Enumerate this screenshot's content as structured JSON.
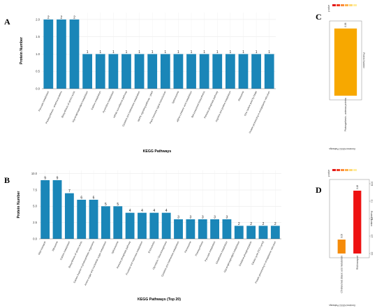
{
  "panels": {
    "a": "A",
    "b": "B",
    "c": "C",
    "d": "D"
  },
  "chart_data": [
    {
      "id": "A",
      "type": "bar",
      "xlabel": "KEGG Pathways",
      "ylabel": "Protein Number",
      "ylim": [
        0,
        2.2
      ],
      "yticks": [
        0.0,
        0.5,
        1.0,
        1.5,
        2.0
      ],
      "grid": true,
      "color": "#1a86b8",
      "categories": [
        "Pyruvate metabolism",
        "Photosynthesis - antenna proteins",
        "Biosynthesis of amino acids",
        "Glycerophospholipid metabolism",
        "Carbon metabolism",
        "Pyrimidine metabolism",
        "mRNA surveillance pathway",
        "Cysteine and methionine metabolism",
        "MAPK signaling pathway - plant",
        "Plant hormone signal transduction",
        "Spliceosome",
        "alpha-Linolenic acid metabolism",
        "Benzoxazinoid biosynthesis",
        "Pentose phosphate pathway",
        "Arginine and proline metabolism",
        "Ribosome",
        "One carbon pool by folate",
        "Protein processing in endoplasmic reticulum"
      ],
      "values": [
        2,
        2,
        2,
        1,
        1,
        1,
        1,
        1,
        1,
        1,
        1,
        1,
        1,
        1,
        1,
        1,
        1,
        1
      ]
    },
    {
      "id": "B",
      "type": "bar",
      "xlabel": "KEGG Pathways (Top 20)",
      "ylabel": "Protein Number",
      "ylim": [
        0,
        10.5
      ],
      "yticks": [
        0.0,
        2.5,
        5.0,
        7.5,
        10.0
      ],
      "grid": true,
      "color": "#1a86b8",
      "categories": [
        "RNA transport",
        "Ribosome",
        "Carbon metabolism",
        "Biosynthesis of amino acids",
        "Carbon fixation in photosynthetic organisms",
        "Amino sugar and nucleotide sugar metabolism",
        "Spliceosome",
        "Pentose phosphate pathway",
        "Fructose and mannose metabolism",
        "Endocytosis",
        "Glycolysis / Gluconeogenesis",
        "Cysteine and methionine metabolism",
        "Peroxisome",
        "Photosynthesis",
        "Pyruvate metabolism",
        "Glutathione metabolism",
        "Glycerophospholipid metabolism",
        "Oxidative phosphorylation",
        "Citrate cycle (TCA cycle)",
        "Protein processing in endoplasmic reticulum"
      ],
      "values": [
        9,
        9,
        7,
        6,
        6,
        5,
        5,
        4,
        4,
        4,
        4,
        3,
        3,
        3,
        3,
        3,
        2,
        2,
        2,
        2
      ]
    },
    {
      "id": "C",
      "type": "bar",
      "xlabel": "Enriched KEGG Pathways",
      "ylabel": "Protein Number",
      "legend_title": "p.value",
      "legend_colors": [
        "#e31a1c",
        "#f03b20",
        "#fd8d3c",
        "#feb24c",
        "#fed976",
        "#ffeda0"
      ],
      "legend_position": "top",
      "categories": [
        "Photosynthesis - antenna proteins"
      ],
      "values": [
        2
      ],
      "p_values": [
        "0.06"
      ],
      "colors": [
        "#f7a800"
      ]
    },
    {
      "id": "D",
      "type": "bar",
      "xlabel": "Enriched KEGG Pathways",
      "ylabel": "Protein Number",
      "ylim": [
        0,
        10
      ],
      "yticks": [
        0.0,
        2.5,
        5.0,
        7.5,
        10.0
      ],
      "legend_title": "p.value",
      "legend_colors": [
        "#e31a1c",
        "#f03b20",
        "#fd8d3c",
        "#feb24c",
        "#fed976",
        "#ffeda0"
      ],
      "legend_position": "top",
      "categories": [
        "C5-Branched dibasic acid metabolism",
        "RNA transport"
      ],
      "values": [
        2,
        9
      ],
      "p_values": [
        "0.03",
        "0.18"
      ],
      "colors": [
        "#f58b0a",
        "#ee1111"
      ]
    }
  ]
}
